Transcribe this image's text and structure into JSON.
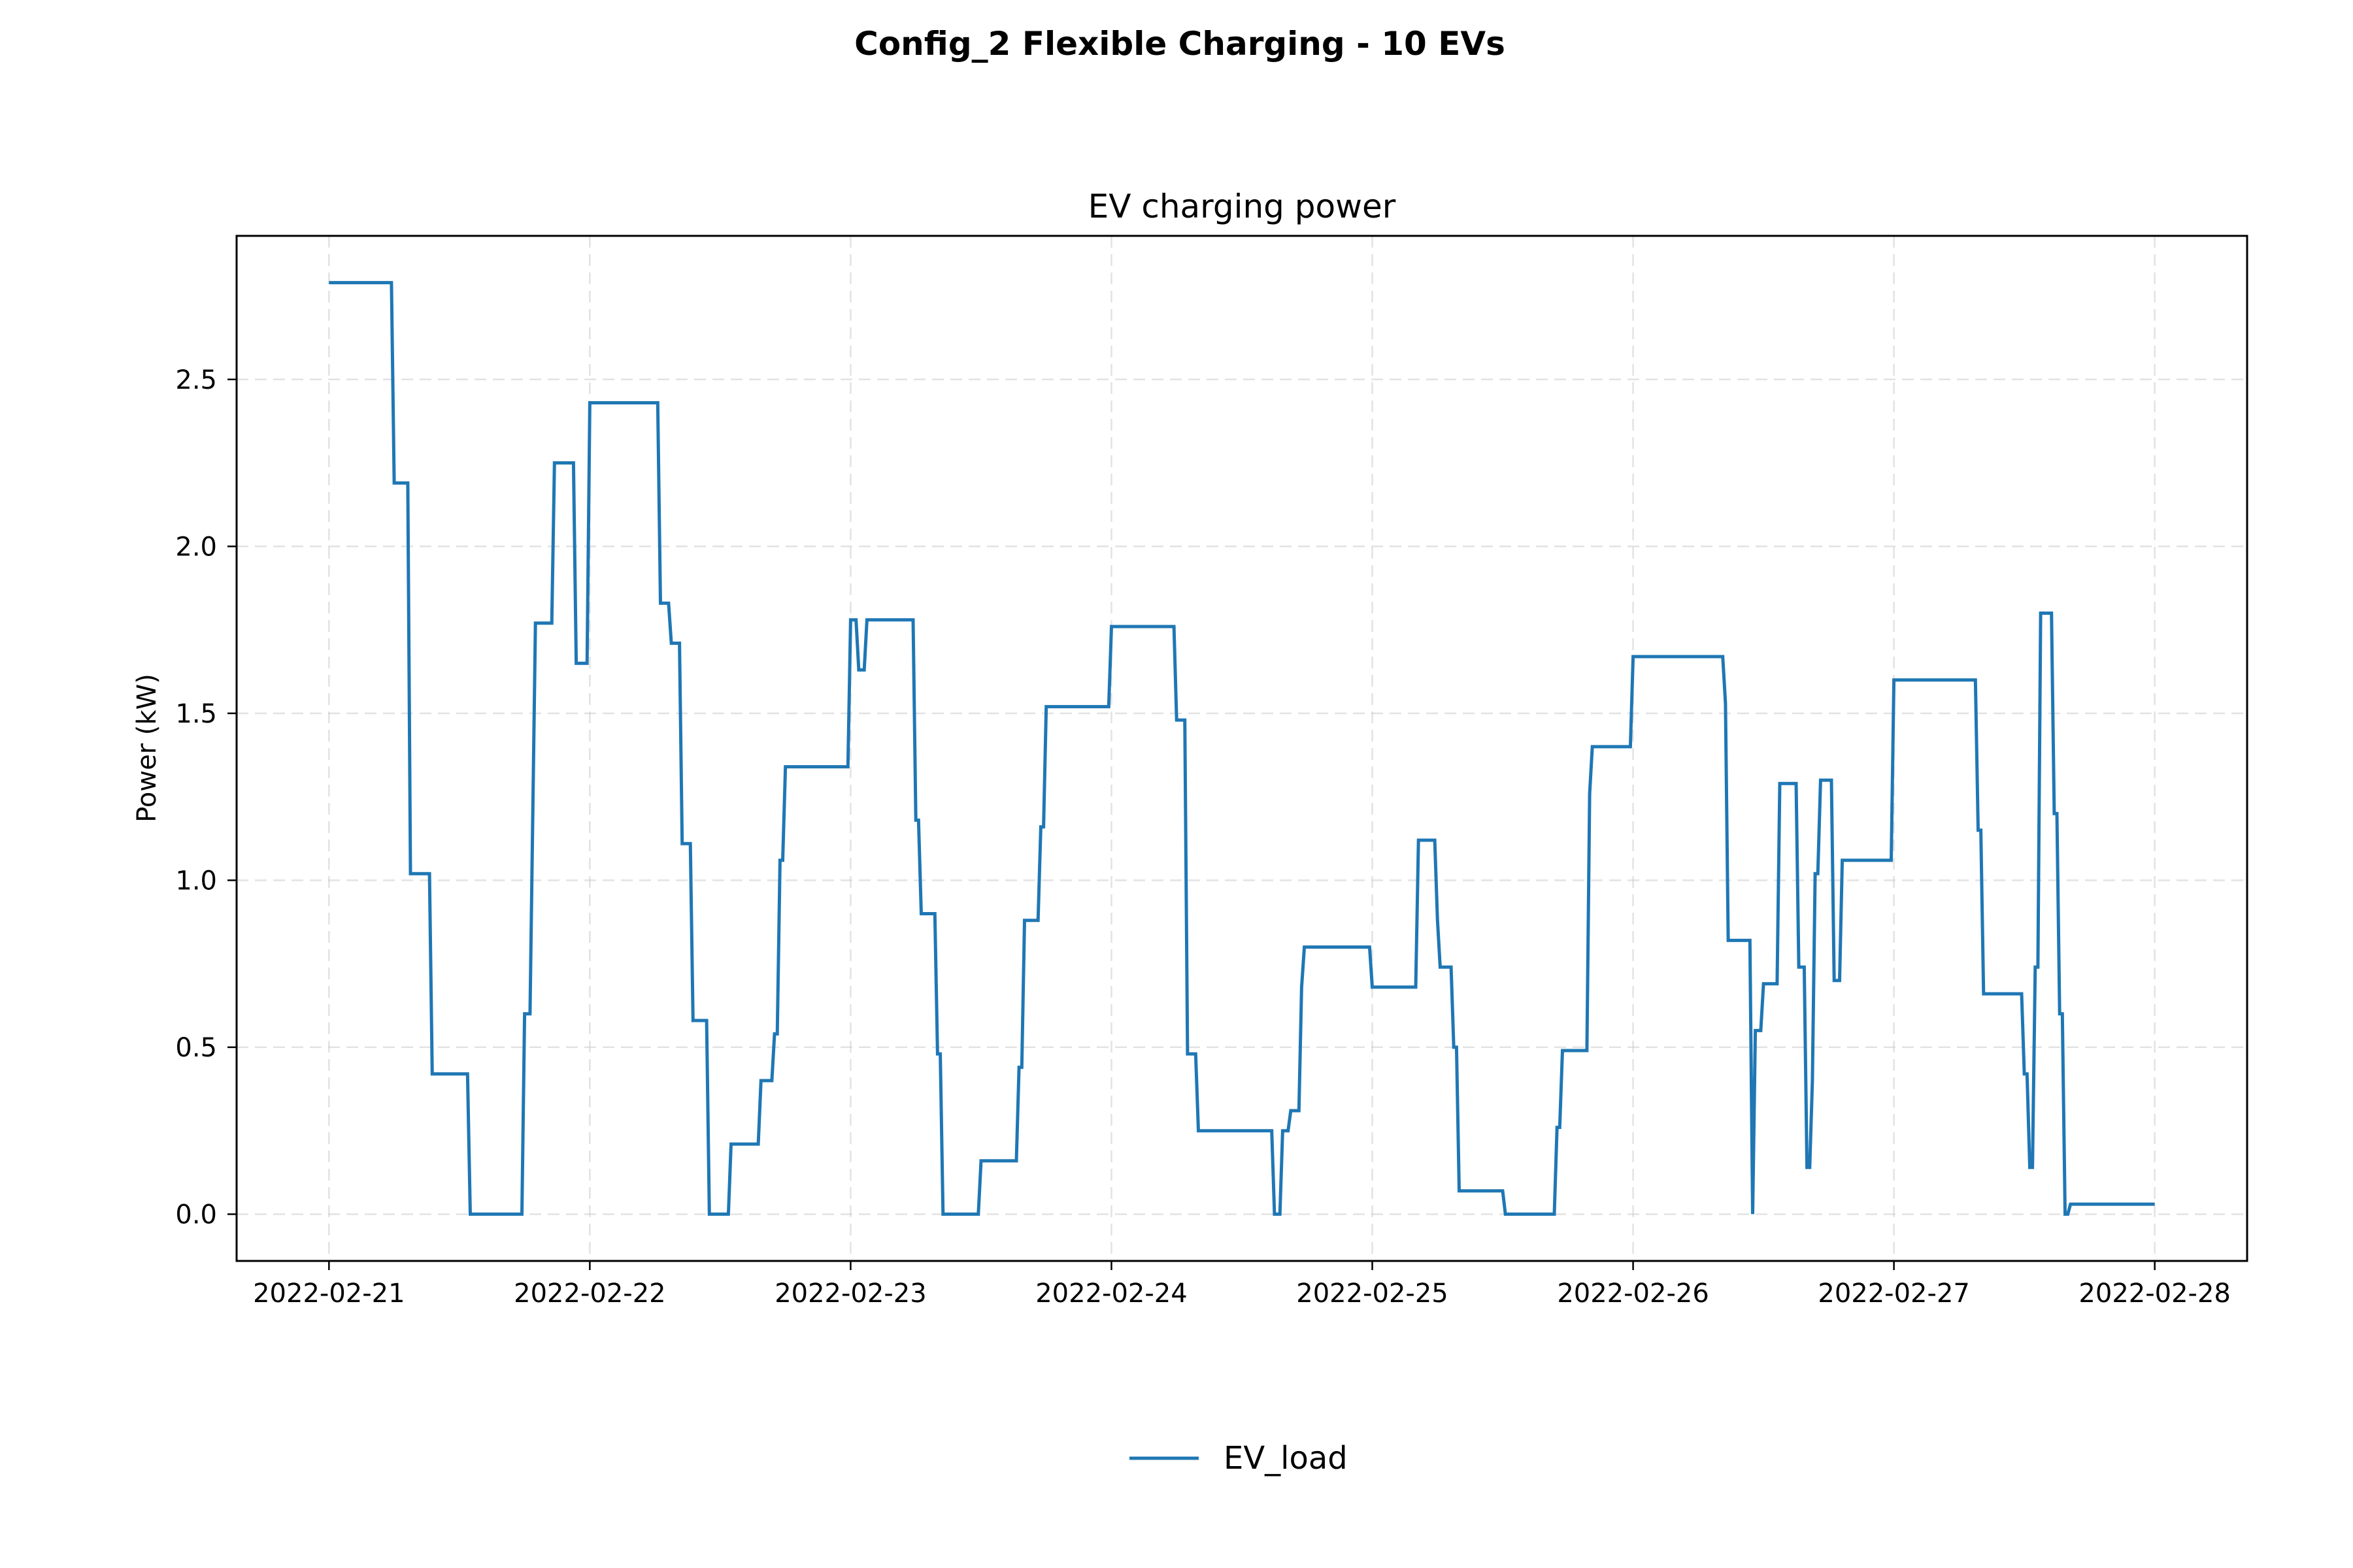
{
  "figure": {
    "suptitle": "Config_2 Flexible Charging - 10 EVs"
  },
  "chart_data": {
    "type": "line",
    "title": "EV charging power",
    "xlabel": "",
    "ylabel": "Power (kW)",
    "xlim": [
      "2022-02-20T15:30",
      "2022-02-28T08:30"
    ],
    "ylim": [
      -0.14,
      2.93
    ],
    "x_ticks": [
      "2022-02-21",
      "2022-02-22",
      "2022-02-23",
      "2022-02-24",
      "2022-02-25",
      "2022-02-26",
      "2022-02-27",
      "2022-02-28"
    ],
    "y_ticks": [
      "0.0",
      "0.5",
      "1.0",
      "1.5",
      "2.0",
      "2.5"
    ],
    "grid": true,
    "legend_position": "below the plot, centered",
    "series": [
      {
        "name": "EV_load",
        "color": "#1f77b4",
        "line_shape": "steps",
        "points": [
          [
            "2022-02-21T00:00",
            2.79
          ],
          [
            "2022-02-21T05:45",
            2.79
          ],
          [
            "2022-02-21T06:00",
            2.19
          ],
          [
            "2022-02-21T07:15",
            2.19
          ],
          [
            "2022-02-21T07:30",
            1.02
          ],
          [
            "2022-02-21T09:15",
            1.02
          ],
          [
            "2022-02-21T09:30",
            0.42
          ],
          [
            "2022-02-21T12:45",
            0.42
          ],
          [
            "2022-02-21T13:00",
            0.0
          ],
          [
            "2022-02-21T17:45",
            0.0
          ],
          [
            "2022-02-21T18:00",
            0.6
          ],
          [
            "2022-02-21T18:30",
            0.6
          ],
          [
            "2022-02-21T19:00",
            1.77
          ],
          [
            "2022-02-21T20:30",
            1.77
          ],
          [
            "2022-02-21T20:45",
            2.25
          ],
          [
            "2022-02-21T22:30",
            2.25
          ],
          [
            "2022-02-21T22:45",
            1.65
          ],
          [
            "2022-02-21T23:45",
            1.65
          ],
          [
            "2022-02-22T00:00",
            2.43
          ],
          [
            "2022-02-22T06:15",
            2.43
          ],
          [
            "2022-02-22T06:30",
            1.83
          ],
          [
            "2022-02-22T07:15",
            1.83
          ],
          [
            "2022-02-22T07:30",
            1.71
          ],
          [
            "2022-02-22T08:15",
            1.71
          ],
          [
            "2022-02-22T08:30",
            1.11
          ],
          [
            "2022-02-22T09:15",
            1.11
          ],
          [
            "2022-02-22T09:30",
            0.58
          ],
          [
            "2022-02-22T10:45",
            0.58
          ],
          [
            "2022-02-22T11:00",
            0.0
          ],
          [
            "2022-02-22T12:45",
            0.0
          ],
          [
            "2022-02-22T13:00",
            0.21
          ],
          [
            "2022-02-22T15:30",
            0.21
          ],
          [
            "2022-02-22T15:45",
            0.4
          ],
          [
            "2022-02-22T16:45",
            0.4
          ],
          [
            "2022-02-22T17:00",
            0.54
          ],
          [
            "2022-02-22T17:15",
            0.54
          ],
          [
            "2022-02-22T17:30",
            1.06
          ],
          [
            "2022-02-22T17:45",
            1.06
          ],
          [
            "2022-02-22T18:00",
            1.34
          ],
          [
            "2022-02-22T23:45",
            1.34
          ],
          [
            "2022-02-23T00:00",
            1.78
          ],
          [
            "2022-02-23T00:30",
            1.78
          ],
          [
            "2022-02-23T00:45",
            1.63
          ],
          [
            "2022-02-23T01:15",
            1.63
          ],
          [
            "2022-02-23T01:30",
            1.78
          ],
          [
            "2022-02-23T05:45",
            1.78
          ],
          [
            "2022-02-23T06:00",
            1.18
          ],
          [
            "2022-02-23T06:15",
            1.18
          ],
          [
            "2022-02-23T06:30",
            0.9
          ],
          [
            "2022-02-23T07:45",
            0.9
          ],
          [
            "2022-02-23T08:00",
            0.48
          ],
          [
            "2022-02-23T08:15",
            0.48
          ],
          [
            "2022-02-23T08:30",
            0.0
          ],
          [
            "2022-02-23T11:45",
            0.0
          ],
          [
            "2022-02-23T12:00",
            0.16
          ],
          [
            "2022-02-23T15:15",
            0.16
          ],
          [
            "2022-02-23T15:30",
            0.44
          ],
          [
            "2022-02-23T15:45",
            0.44
          ],
          [
            "2022-02-23T16:00",
            0.88
          ],
          [
            "2022-02-23T17:15",
            0.88
          ],
          [
            "2022-02-23T17:30",
            1.16
          ],
          [
            "2022-02-23T17:45",
            1.16
          ],
          [
            "2022-02-23T18:00",
            1.52
          ],
          [
            "2022-02-23T23:45",
            1.52
          ],
          [
            "2022-02-24T00:00",
            1.76
          ],
          [
            "2022-02-24T05:45",
            1.76
          ],
          [
            "2022-02-24T06:00",
            1.48
          ],
          [
            "2022-02-24T06:45",
            1.48
          ],
          [
            "2022-02-24T07:00",
            0.48
          ],
          [
            "2022-02-24T07:45",
            0.48
          ],
          [
            "2022-02-24T08:00",
            0.25
          ],
          [
            "2022-02-24T14:45",
            0.25
          ],
          [
            "2022-02-24T15:00",
            0.0
          ],
          [
            "2022-02-24T15:30",
            0.0
          ],
          [
            "2022-02-24T15:45",
            0.25
          ],
          [
            "2022-02-24T16:15",
            0.25
          ],
          [
            "2022-02-24T16:30",
            0.31
          ],
          [
            "2022-02-24T17:15",
            0.31
          ],
          [
            "2022-02-24T17:30",
            0.68
          ],
          [
            "2022-02-24T17:45",
            0.8
          ],
          [
            "2022-02-24T23:45",
            0.8
          ],
          [
            "2022-02-25T00:00",
            0.68
          ],
          [
            "2022-02-25T04:00",
            0.68
          ],
          [
            "2022-02-25T04:15",
            1.12
          ],
          [
            "2022-02-25T05:45",
            1.12
          ],
          [
            "2022-02-25T06:00",
            0.88
          ],
          [
            "2022-02-25T06:15",
            0.74
          ],
          [
            "2022-02-25T07:15",
            0.74
          ],
          [
            "2022-02-25T07:30",
            0.5
          ],
          [
            "2022-02-25T07:45",
            0.5
          ],
          [
            "2022-02-25T08:00",
            0.07
          ],
          [
            "2022-02-25T12:00",
            0.07
          ],
          [
            "2022-02-25T12:15",
            0.0
          ],
          [
            "2022-02-25T16:45",
            0.0
          ],
          [
            "2022-02-25T17:00",
            0.26
          ],
          [
            "2022-02-25T17:15",
            0.26
          ],
          [
            "2022-02-25T17:30",
            0.49
          ],
          [
            "2022-02-25T19:45",
            0.49
          ],
          [
            "2022-02-25T20:00",
            1.26
          ],
          [
            "2022-02-25T20:15",
            1.4
          ],
          [
            "2022-02-25T23:45",
            1.4
          ],
          [
            "2022-02-26T00:00",
            1.67
          ],
          [
            "2022-02-26T08:15",
            1.67
          ],
          [
            "2022-02-26T08:30",
            1.53
          ],
          [
            "2022-02-26T08:45",
            0.82
          ],
          [
            "2022-02-26T10:45",
            0.82
          ],
          [
            "2022-02-26T11:00",
            0.0
          ],
          [
            "2022-02-26T11:15",
            0.55
          ],
          [
            "2022-02-26T11:45",
            0.55
          ],
          [
            "2022-02-26T12:00",
            0.69
          ],
          [
            "2022-02-26T13:15",
            0.69
          ],
          [
            "2022-02-26T13:30",
            1.29
          ],
          [
            "2022-02-26T15:00",
            1.29
          ],
          [
            "2022-02-26T15:15",
            0.74
          ],
          [
            "2022-02-26T15:45",
            0.74
          ],
          [
            "2022-02-26T16:00",
            0.14
          ],
          [
            "2022-02-26T16:15",
            0.14
          ],
          [
            "2022-02-26T16:30",
            0.4
          ],
          [
            "2022-02-26T16:45",
            1.02
          ],
          [
            "2022-02-26T17:00",
            1.02
          ],
          [
            "2022-02-26T17:15",
            1.3
          ],
          [
            "2022-02-26T18:15",
            1.3
          ],
          [
            "2022-02-26T18:30",
            0.7
          ],
          [
            "2022-02-26T19:00",
            0.7
          ],
          [
            "2022-02-26T19:15",
            1.06
          ],
          [
            "2022-02-26T23:45",
            1.06
          ],
          [
            "2022-02-27T00:00",
            1.6
          ],
          [
            "2022-02-27T07:30",
            1.6
          ],
          [
            "2022-02-27T07:45",
            1.15
          ],
          [
            "2022-02-27T08:00",
            1.15
          ],
          [
            "2022-02-27T08:15",
            0.66
          ],
          [
            "2022-02-27T11:45",
            0.66
          ],
          [
            "2022-02-27T12:00",
            0.42
          ],
          [
            "2022-02-27T12:15",
            0.42
          ],
          [
            "2022-02-27T12:30",
            0.14
          ],
          [
            "2022-02-27T12:45",
            0.14
          ],
          [
            "2022-02-27T13:00",
            0.74
          ],
          [
            "2022-02-27T13:15",
            0.74
          ],
          [
            "2022-02-27T13:30",
            1.8
          ],
          [
            "2022-02-27T14:30",
            1.8
          ],
          [
            "2022-02-27T14:45",
            1.2
          ],
          [
            "2022-02-27T15:00",
            1.2
          ],
          [
            "2022-02-27T15:15",
            0.6
          ],
          [
            "2022-02-27T15:30",
            0.6
          ],
          [
            "2022-02-27T15:45",
            0.0
          ],
          [
            "2022-02-27T16:00",
            0.0
          ],
          [
            "2022-02-27T16:15",
            0.03
          ],
          [
            "2022-02-28T00:00",
            0.03
          ]
        ]
      }
    ]
  }
}
